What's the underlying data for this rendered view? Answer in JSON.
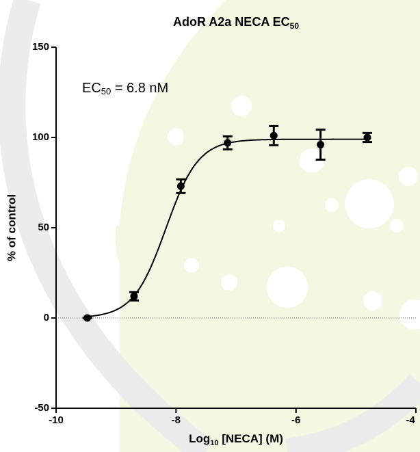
{
  "chart_data": {
    "type": "scatter",
    "title": {
      "text": "AdoR A2a NECA EC",
      "sub": "50"
    },
    "annotation": {
      "text": "EC",
      "sub": "50",
      "tail": " = 6.8 nM"
    },
    "x_label": {
      "text": "Log",
      "sub": "10",
      "tail": " [NECA] (M)"
    },
    "y_label": "% of control",
    "series": [
      {
        "color": "#000000",
        "x": [
          -9.48,
          -8.7,
          -7.92,
          -7.14,
          -6.37,
          -5.59,
          -4.81
        ],
        "values": [
          0,
          12,
          73,
          97,
          101,
          96,
          100
        ],
        "errors": [
          0,
          2.3,
          3.8,
          3.6,
          5.3,
          8.3,
          2.5
        ]
      }
    ],
    "fit": {
      "bottom": 0,
      "top": 99,
      "log_ec50": -8.17,
      "hill": 1.6
    },
    "xlim": [
      -10,
      -4
    ],
    "xticks": [
      -10,
      -8,
      -6,
      -4
    ],
    "ylim": [
      -50,
      150
    ],
    "yticks": [
      -50,
      0,
      50,
      100,
      150
    ],
    "zero_line": true
  }
}
